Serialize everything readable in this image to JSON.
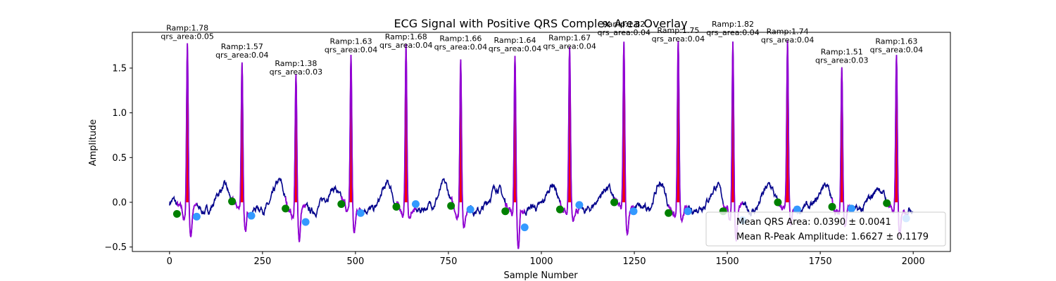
{
  "chart_data": {
    "type": "line",
    "title": "ECG Signal with Positive QRS Complex Area Overlay",
    "xlabel": "Sample Number",
    "ylabel": "Amplitude",
    "xlim": [
      -100,
      2100
    ],
    "ylim": [
      -0.55,
      1.9
    ],
    "x_ticks": [
      0,
      250,
      500,
      750,
      1000,
      1250,
      1500,
      1750,
      2000
    ],
    "y_ticks": [
      -0.5,
      0.0,
      0.5,
      1.0,
      1.5
    ],
    "x_tick_labels": [
      "0",
      "250",
      "500",
      "750",
      "1000",
      "1250",
      "1500",
      "1750",
      "2000"
    ],
    "y_tick_labels": [
      "−0.5",
      "0.0",
      "0.5",
      "1.0",
      "1.5"
    ],
    "grid": false,
    "legend_position": "lower-right",
    "colors": {
      "signal": "#00008b",
      "qrs_segment": "#9400d3",
      "qrs_area_fill": "#ff0000",
      "q_marker": "#008000",
      "s_marker": "#3399ff"
    },
    "beats": [
      {
        "q": 20,
        "r": 48,
        "s": 73,
        "ramp": 1.78,
        "qrs_area": 0.05,
        "ramp_label": "Ramp:1.78",
        "area_label": "qrs_area:0.05",
        "q_amp": -0.13,
        "s_amp": -0.16
      },
      {
        "q": 168,
        "r": 195,
        "s": 220,
        "ramp": 1.57,
        "qrs_area": 0.04,
        "ramp_label": "Ramp:1.57",
        "area_label": "qrs_area:0.04",
        "q_amp": 0.01,
        "s_amp": -0.15
      },
      {
        "q": 312,
        "r": 340,
        "s": 366,
        "ramp": 1.38,
        "qrs_area": 0.03,
        "ramp_label": "Ramp:1.38",
        "area_label": "qrs_area:0.03",
        "q_amp": -0.07,
        "s_amp": -0.22
      },
      {
        "q": 462,
        "r": 488,
        "s": 514,
        "ramp": 1.63,
        "qrs_area": 0.04,
        "ramp_label": "Ramp:1.63",
        "area_label": "qrs_area:0.04",
        "q_amp": -0.02,
        "s_amp": -0.12
      },
      {
        "q": 610,
        "r": 636,
        "s": 662,
        "ramp": 1.68,
        "qrs_area": 0.04,
        "ramp_label": "Ramp:1.68",
        "area_label": "qrs_area:0.04",
        "q_amp": -0.05,
        "s_amp": -0.02
      },
      {
        "q": 757,
        "r": 783,
        "s": 809,
        "ramp": 1.66,
        "qrs_area": 0.04,
        "ramp_label": "Ramp:1.66",
        "area_label": "qrs_area:0.04",
        "q_amp": -0.04,
        "s_amp": -0.08
      },
      {
        "q": 903,
        "r": 929,
        "s": 955,
        "ramp": 1.64,
        "qrs_area": 0.04,
        "ramp_label": "Ramp:1.64",
        "area_label": "qrs_area:0.04",
        "q_amp": -0.1,
        "s_amp": -0.28
      },
      {
        "q": 1050,
        "r": 1076,
        "s": 1102,
        "ramp": 1.67,
        "qrs_area": 0.04,
        "ramp_label": "Ramp:1.67",
        "area_label": "qrs_area:0.04",
        "q_amp": -0.08,
        "s_amp": -0.03
      },
      {
        "q": 1196,
        "r": 1222,
        "s": 1248,
        "ramp": 1.82,
        "qrs_area": 0.04,
        "ramp_label": "Ramp:1.82",
        "area_label": "qrs_area:0.04",
        "q_amp": 0.0,
        "s_amp": -0.1
      },
      {
        "q": 1342,
        "r": 1368,
        "s": 1394,
        "ramp": 1.75,
        "qrs_area": 0.04,
        "ramp_label": "Ramp:1.75",
        "area_label": "qrs_area:0.04",
        "q_amp": -0.12,
        "s_amp": -0.1
      },
      {
        "q": 1489,
        "r": 1515,
        "s": 1541,
        "ramp": 1.82,
        "qrs_area": 0.04,
        "ramp_label": "Ramp:1.82",
        "area_label": "qrs_area:0.04",
        "q_amp": -0.1,
        "s_amp": -0.2
      },
      {
        "q": 1636,
        "r": 1662,
        "s": 1688,
        "ramp": 1.74,
        "qrs_area": 0.04,
        "ramp_label": "Ramp:1.74",
        "area_label": "qrs_area:0.04",
        "q_amp": 0.0,
        "s_amp": -0.08
      },
      {
        "q": 1782,
        "r": 1808,
        "s": 1834,
        "ramp": 1.51,
        "qrs_area": 0.03,
        "ramp_label": "Ramp:1.51",
        "area_label": "qrs_area:0.03",
        "q_amp": -0.05,
        "s_amp": -0.07
      },
      {
        "q": 1929,
        "r": 1955,
        "s": 1981,
        "ramp": 1.63,
        "qrs_area": 0.04,
        "ramp_label": "Ramp:1.63",
        "area_label": "qrs_area:0.04",
        "q_amp": -0.01,
        "s_amp": -0.18
      }
    ],
    "legend": {
      "entries": [
        "Mean QRS Area: 0.0390 ± 0.0041",
        "Mean R-Peak Amplitude: 1.6627 ± 0.1179"
      ]
    }
  }
}
